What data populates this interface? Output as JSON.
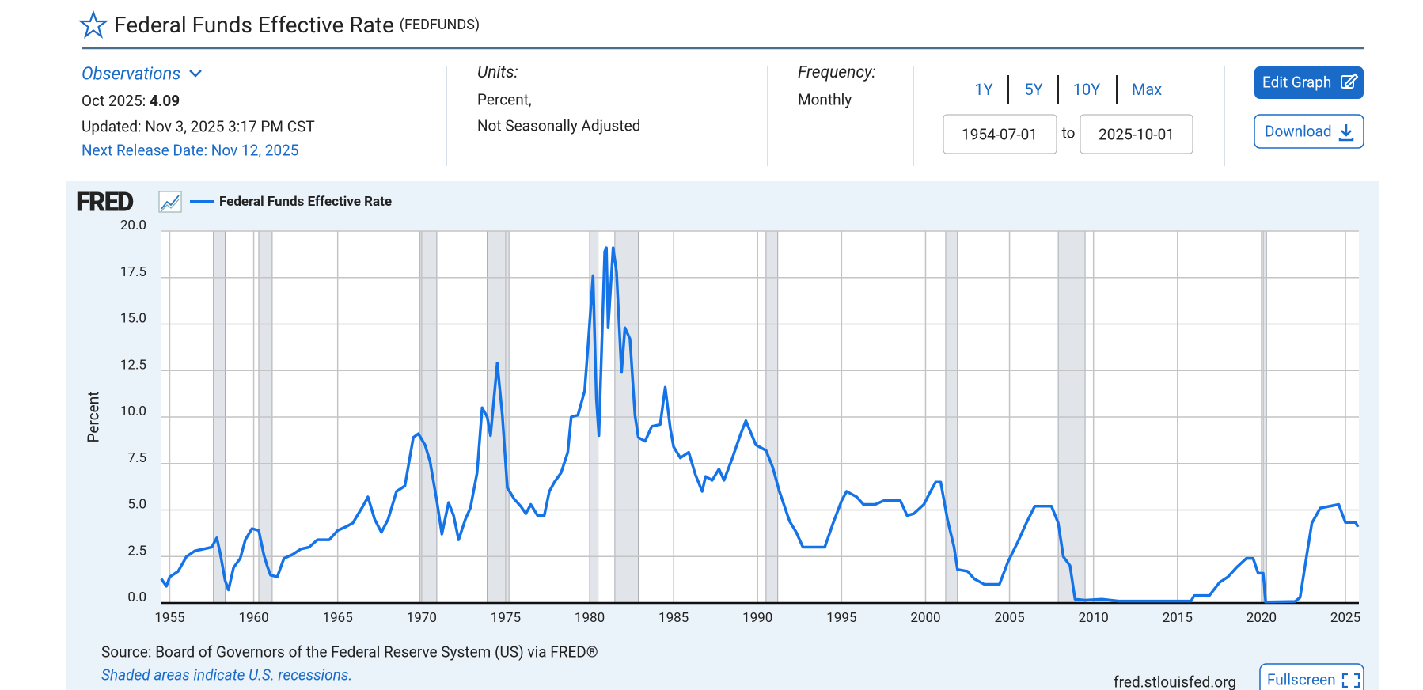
{
  "header": {
    "title": "Federal Funds Effective Rate",
    "code": "(FEDFUNDS)"
  },
  "observations": {
    "label": "Observations",
    "date_label": "Oct 2025:",
    "value": 4.09,
    "updated": "Updated: Nov 3, 2025 3:17 PM CST",
    "next_release": "Next Release Date: Nov 12, 2025"
  },
  "units": {
    "label": "Units:",
    "lines": [
      "Percent,",
      "Not Seasonally Adjusted"
    ]
  },
  "frequency": {
    "label": "Frequency:",
    "value": "Monthly"
  },
  "ranges": [
    "1Y",
    "5Y",
    "10Y",
    "Max"
  ],
  "date_range": {
    "start": "1954-07-01",
    "separator": "to",
    "end": "2025-10-01"
  },
  "buttons": {
    "edit": "Edit Graph",
    "download": "Download",
    "fullscreen": "Fullscreen"
  },
  "chart_data": {
    "type": "line",
    "logo": "FRED",
    "ylabel": "Percent",
    "grid": true,
    "xlim": [
      1954.46,
      2025.8
    ],
    "ylim": [
      0,
      20
    ],
    "xticks": [
      1955,
      1960,
      1965,
      1970,
      1975,
      1980,
      1985,
      1990,
      1995,
      2000,
      2005,
      2010,
      2015,
      2020,
      2025
    ],
    "yticks": [
      {
        "value": 0,
        "label": "0.0"
      },
      {
        "value": 2.5,
        "label": "2.5"
      },
      {
        "value": 5,
        "label": "5.0"
      },
      {
        "value": 7.5,
        "label": "7.5"
      },
      {
        "value": 10,
        "label": "10.0"
      },
      {
        "value": 12.5,
        "label": "12.5"
      },
      {
        "value": 15,
        "label": "15.0"
      },
      {
        "value": 17.5,
        "label": "17.5"
      },
      {
        "value": 20,
        "label": "20.0"
      }
    ],
    "recessions": [
      [
        1957.6,
        1958.3
      ],
      [
        1960.3,
        1961.1
      ],
      [
        1969.9,
        1970.9
      ],
      [
        1973.9,
        1975.2
      ],
      [
        1980.0,
        1980.5
      ],
      [
        1981.5,
        1982.9
      ],
      [
        1990.5,
        1991.2
      ],
      [
        2001.2,
        2001.9
      ],
      [
        2007.9,
        2009.5
      ],
      [
        2020.1,
        2020.3
      ]
    ],
    "recession_color": "#e1e5ea",
    "x": [
      1954.5,
      1954.8,
      1955.0,
      1955.5,
      1956.0,
      1956.5,
      1957.0,
      1957.5,
      1957.8,
      1958.0,
      1958.3,
      1958.5,
      1958.8,
      1959.2,
      1959.5,
      1959.9,
      1960.3,
      1960.6,
      1960.8,
      1961.0,
      1961.4,
      1961.8,
      1962.3,
      1962.8,
      1963.3,
      1963.8,
      1964.5,
      1965.0,
      1965.5,
      1965.9,
      1966.5,
      1966.8,
      1967.2,
      1967.6,
      1968.0,
      1968.5,
      1969.0,
      1969.5,
      1969.8,
      1970.2,
      1970.5,
      1970.9,
      1971.2,
      1971.6,
      1971.9,
      1972.2,
      1972.6,
      1972.9,
      1973.3,
      1973.6,
      1973.9,
      1974.1,
      1974.5,
      1974.8,
      1975.1,
      1975.5,
      1975.9,
      1976.2,
      1976.5,
      1976.9,
      1977.3,
      1977.6,
      1977.9,
      1978.3,
      1978.7,
      1978.9,
      1979.3,
      1979.7,
      1979.9,
      1980.2,
      1980.4,
      1980.55,
      1980.9,
      1981.0,
      1981.1,
      1981.4,
      1981.6,
      1981.9,
      1982.1,
      1982.4,
      1982.7,
      1982.9,
      1983.3,
      1983.7,
      1984.2,
      1984.5,
      1984.8,
      1985.0,
      1985.4,
      1985.9,
      1986.3,
      1986.7,
      1986.9,
      1987.3,
      1987.7,
      1988.0,
      1988.5,
      1989.0,
      1989.3,
      1989.9,
      1990.5,
      1990.9,
      1991.3,
      1991.9,
      1992.3,
      1992.7,
      1993.5,
      1994.0,
      1994.5,
      1995.0,
      1995.3,
      1995.9,
      1996.3,
      1997.0,
      1997.5,
      1998.5,
      1998.9,
      1999.3,
      1999.9,
      2000.3,
      2000.6,
      2000.9,
      2001.3,
      2001.7,
      2001.9,
      2002.5,
      2002.9,
      2003.5,
      2004.4,
      2004.9,
      2005.5,
      2006.0,
      2006.5,
      2007.5,
      2007.9,
      2008.2,
      2008.6,
      2008.9,
      2009.5,
      2010.5,
      2011.5,
      2013.0,
      2015.8,
      2016.0,
      2016.9,
      2017.5,
      2018.0,
      2018.5,
      2019.1,
      2019.5,
      2019.8,
      2020.1,
      2020.25,
      2022.0,
      2022.3,
      2022.7,
      2023.0,
      2023.5,
      2024.6,
      2024.8,
      2025.0,
      2025.6,
      2025.75
    ],
    "series": [
      {
        "name": "Federal Funds Effective Rate",
        "color": "#1473e6",
        "values": [
          1.3,
          0.9,
          1.4,
          1.7,
          2.5,
          2.8,
          2.9,
          3.0,
          3.5,
          2.7,
          1.2,
          0.7,
          1.9,
          2.4,
          3.4,
          4.0,
          3.9,
          2.6,
          2.0,
          1.5,
          1.4,
          2.4,
          2.6,
          2.9,
          3.0,
          3.4,
          3.4,
          3.9,
          4.1,
          4.3,
          5.2,
          5.7,
          4.5,
          3.8,
          4.5,
          6.0,
          6.3,
          8.9,
          9.1,
          8.5,
          7.6,
          5.5,
          3.7,
          5.4,
          4.7,
          3.4,
          4.5,
          5.1,
          7.0,
          10.5,
          10.0,
          9.0,
          12.9,
          10.1,
          6.2,
          5.6,
          5.2,
          4.8,
          5.3,
          4.7,
          4.7,
          6.0,
          6.5,
          7.0,
          8.1,
          10.0,
          10.1,
          11.4,
          13.8,
          17.6,
          11.0,
          9.0,
          18.9,
          19.1,
          14.8,
          19.1,
          17.8,
          12.4,
          14.8,
          14.2,
          10.1,
          8.9,
          8.7,
          9.5,
          9.6,
          11.6,
          9.4,
          8.4,
          7.8,
          8.1,
          6.9,
          6.0,
          6.8,
          6.6,
          7.2,
          6.6,
          7.8,
          9.1,
          9.8,
          8.5,
          8.2,
          7.3,
          6.0,
          4.4,
          3.8,
          3.0,
          3.0,
          3.0,
          4.3,
          5.5,
          6.0,
          5.7,
          5.3,
          5.3,
          5.5,
          5.5,
          4.7,
          4.8,
          5.3,
          6.0,
          6.5,
          6.5,
          4.5,
          3.0,
          1.8,
          1.7,
          1.3,
          1.0,
          1.0,
          2.2,
          3.3,
          4.3,
          5.2,
          5.2,
          4.3,
          2.5,
          2.0,
          0.2,
          0.15,
          0.2,
          0.1,
          0.1,
          0.1,
          0.4,
          0.4,
          1.1,
          1.4,
          1.9,
          2.4,
          2.4,
          1.6,
          1.6,
          0.05,
          0.08,
          0.3,
          2.6,
          4.3,
          5.1,
          5.3,
          4.8,
          4.33,
          4.33,
          4.09
        ]
      }
    ]
  },
  "footer": {
    "source": "Source: Board of Governors of the Federal Reserve System (US) via FRED®",
    "note": "Shaded areas indicate U.S. recessions.",
    "site": "fred.stlouisfed.org"
  }
}
